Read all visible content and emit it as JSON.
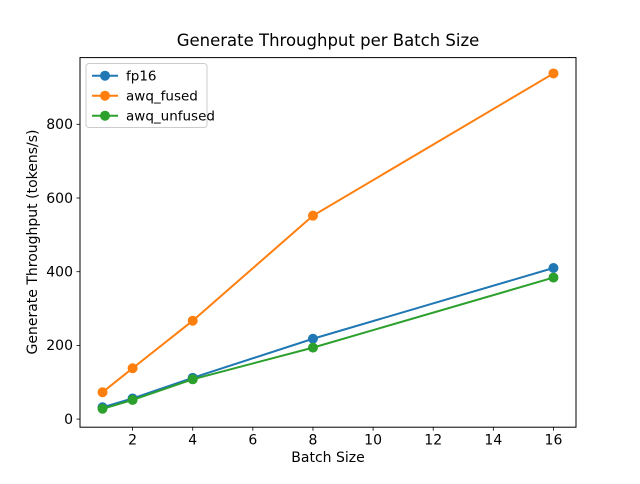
{
  "figure": {
    "title": "Generate Throughput per Batch Size",
    "xlabel": "Batch Size",
    "ylabel": "Generate Throughput (tokens/s)"
  },
  "legend": {
    "entries": [
      "fp16",
      "awq_fused",
      "awq_unfused"
    ],
    "position": "upper-left"
  },
  "chart_data": {
    "type": "line",
    "title": "Generate Throughput per Batch Size",
    "xlabel": "Batch Size",
    "ylabel": "Generate Throughput (tokens/s)",
    "x": [
      1,
      2,
      4,
      8,
      16
    ],
    "series": [
      {
        "name": "fp16",
        "color": "#1f77b4",
        "values": [
          32,
          56,
          112,
          218,
          410
        ]
      },
      {
        "name": "awq_fused",
        "color": "#ff7f0e",
        "values": [
          73,
          138,
          267,
          552,
          938
        ]
      },
      {
        "name": "awq_unfused",
        "color": "#2ca02c",
        "values": [
          28,
          52,
          108,
          194,
          384
        ]
      }
    ],
    "marker": "circle",
    "line_width": 2,
    "xlim": [
      0.25,
      16.75
    ],
    "ylim": [
      -22,
      981
    ],
    "xticks": [
      2,
      4,
      6,
      8,
      10,
      12,
      14,
      16
    ],
    "yticks": [
      0,
      200,
      400,
      600,
      800
    ],
    "grid": false,
    "legend_position": "upper-left",
    "background_color": "#ffffff",
    "spine_color": "#000000",
    "legend_border_color": "#cccccc"
  }
}
